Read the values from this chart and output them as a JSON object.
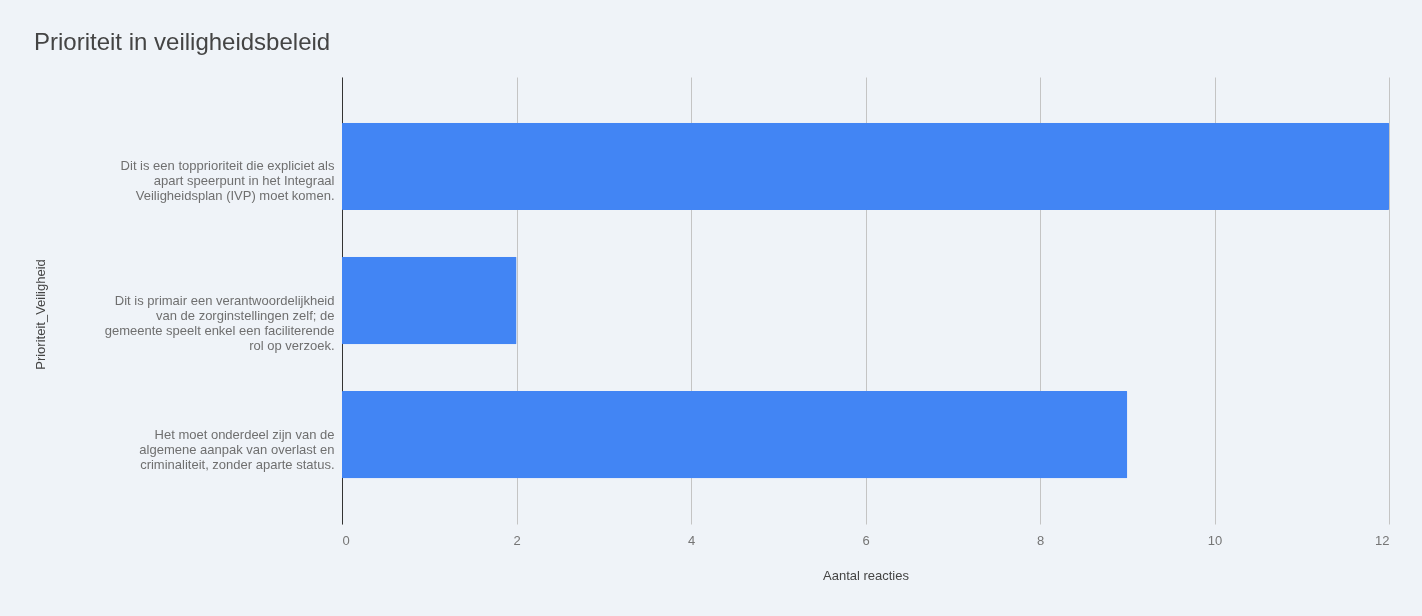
{
  "chart_data": {
    "type": "bar",
    "orientation": "horizontal",
    "title": "Prioriteit in veiligheidsbeleid",
    "xlabel": "Aantal reacties",
    "ylabel": "Prioriteit_Veiligheid",
    "categories": [
      "Dit is een topprioriteit die expliciet als apart speerpunt in het Integraal Veiligheidsplan (IVP) moet komen.",
      "Dit is primair een verantwoordelijkheid van de zorginstellingen zelf; de gemeente speelt enkel een faciliterende rol op verzoek.",
      "Het moet onderdeel zijn van de algemene aanpak van overlast en criminaliteit, zonder aparte status."
    ],
    "values": [
      12,
      2,
      9
    ],
    "color": "#4285f4",
    "xlim": [
      0,
      12
    ],
    "xticks": [
      0,
      2,
      4,
      6,
      8,
      10,
      12
    ],
    "grid": "x"
  }
}
